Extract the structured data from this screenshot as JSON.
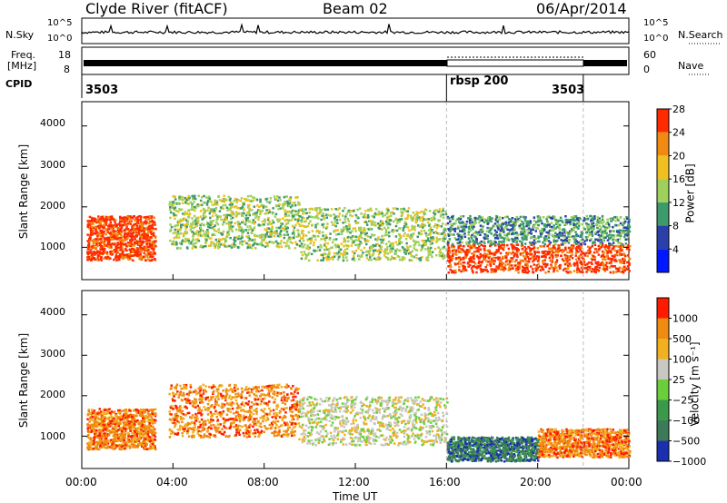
{
  "header": {
    "title": "Clyde River (fitACF)",
    "beam": "Beam 02",
    "date": "06/Apr/2014"
  },
  "status_panels": {
    "nsky": {
      "label": "N.Sky",
      "ticks": [
        "10^5",
        "10^0"
      ]
    },
    "nsearch": {
      "label": "N.Search",
      "ticks": [
        "10^5",
        "10^0"
      ]
    },
    "freq": {
      "label_top": "Freq.",
      "label_bottom": "[MHz]",
      "ticks": [
        "18",
        "8"
      ]
    },
    "nave": {
      "label": "Nave",
      "ticks": [
        "60",
        "0"
      ]
    },
    "cpid": {
      "label": "CPID",
      "segments": [
        {
          "name": "3503",
          "start_hour": 0,
          "end_hour": 16
        },
        {
          "name": "rbsp 200",
          "start_hour": 16,
          "end_hour": 22
        },
        {
          "name": "3503",
          "start_hour": 22,
          "end_hour": 24
        }
      ]
    }
  },
  "chart_data": [
    {
      "type": "heatmap",
      "name": "power",
      "ylabel": "Slant Range [km]",
      "yticks": [
        "1000",
        "2000",
        "3000",
        "4000"
      ],
      "ylim": [
        200,
        4600
      ],
      "xlim": [
        0,
        24
      ],
      "colorbar": {
        "label": "Power [dB]",
        "ticks": [
          "4",
          "8",
          "12",
          "16",
          "20",
          "24",
          "28"
        ],
        "colors": [
          "#0018ff",
          "#2a3fa8",
          "#3d9a6a",
          "#9fd05a",
          "#f0c020",
          "#f08a10",
          "#ff2a00"
        ]
      },
      "scatter_bands": [
        {
          "x": [
            0.2,
            3.2
          ],
          "y": [
            700,
            1800
          ],
          "level": 6
        },
        {
          "x": [
            3.8,
            9.5
          ],
          "y": [
            1000,
            2300
          ],
          "level": 3
        },
        {
          "x": [
            9.5,
            16
          ],
          "y": [
            700,
            2000
          ],
          "level": 3
        },
        {
          "x": [
            16,
            24
          ],
          "y": [
            400,
            1100
          ],
          "level": 6
        },
        {
          "x": [
            16,
            24
          ],
          "y": [
            1100,
            1800
          ],
          "level": 2
        }
      ]
    },
    {
      "type": "heatmap",
      "name": "velocity",
      "ylabel": "Slant Range [km]",
      "yticks": [
        "1000",
        "2000",
        "3000",
        "4000"
      ],
      "ylim": [
        200,
        4600
      ],
      "xlim": [
        0,
        24
      ],
      "xlabel": "Time UT",
      "xticks": [
        "00:00",
        "04:00",
        "08:00",
        "12:00",
        "16:00",
        "20:00",
        "00:00"
      ],
      "colorbar": {
        "label": "Velocity [m s⁻¹]",
        "ticks": [
          "1000",
          "500",
          "100",
          "25",
          "−25",
          "−100",
          "−500",
          "−1000"
        ],
        "colors": [
          "#1a2fb0",
          "#3d7a5a",
          "#3a9a4a",
          "#6acf3a",
          "#c8c8c0",
          "#f0b020",
          "#f08a10",
          "#ff1a00"
        ]
      },
      "scatter_bands": [
        {
          "x": [
            0.2,
            3.2
          ],
          "y": [
            700,
            1700
          ],
          "level": 6
        },
        {
          "x": [
            3.8,
            9.5
          ],
          "y": [
            1000,
            2300
          ],
          "level": 6
        },
        {
          "x": [
            9.5,
            16
          ],
          "y": [
            800,
            2000
          ],
          "level": 4
        },
        {
          "x": [
            16,
            20
          ],
          "y": [
            400,
            1000
          ],
          "level": 1
        },
        {
          "x": [
            20,
            24
          ],
          "y": [
            500,
            1200
          ],
          "level": 6
        }
      ]
    }
  ]
}
